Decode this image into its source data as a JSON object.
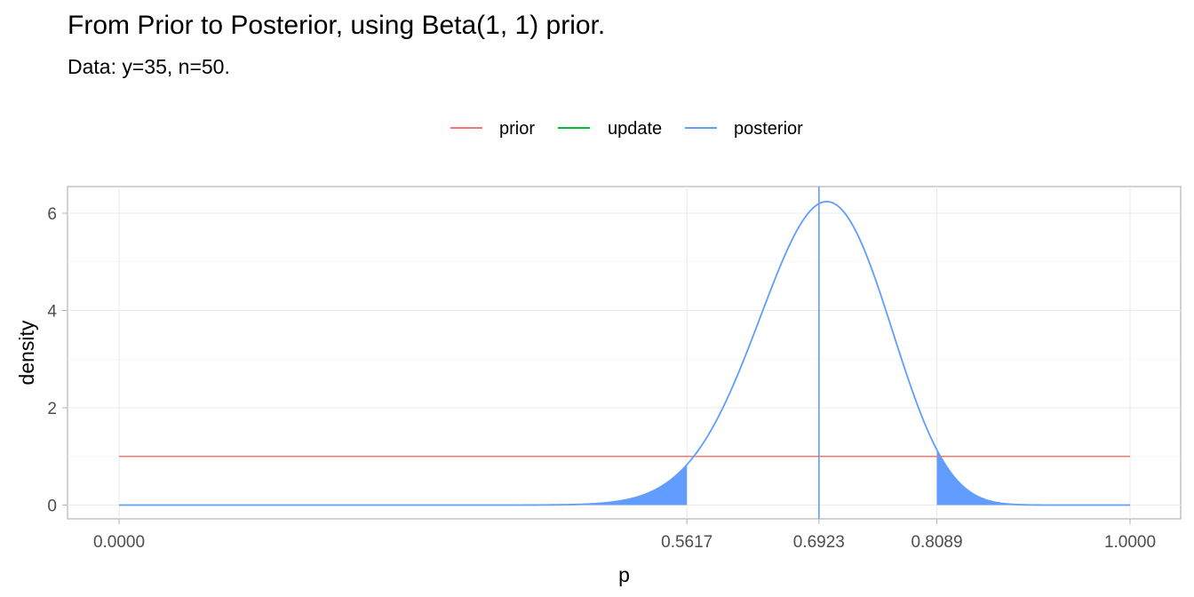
{
  "chart_data": {
    "type": "line",
    "title": "From Prior to Posterior, using Beta(1, 1) prior.",
    "subtitle": "Data: y=35, n=50.",
    "xlabel": "p",
    "ylabel": "density",
    "xlim": [
      0,
      1
    ],
    "ylim": [
      0,
      6.5
    ],
    "x_ticks": [
      "0.0000",
      "0.5617",
      "0.6923",
      "0.8089",
      "1.0000"
    ],
    "x_tick_values": [
      0,
      0.5617,
      0.6923,
      0.8089,
      1
    ],
    "y_ticks": [
      "0",
      "2",
      "4",
      "6"
    ],
    "y_tick_values": [
      0,
      2,
      4,
      6
    ],
    "grid": true,
    "legend_position": "top",
    "series": [
      {
        "name": "prior",
        "color": "#F8766D",
        "distribution": {
          "family": "beta",
          "alpha": 1,
          "beta": 1
        }
      },
      {
        "name": "update",
        "color": "#00BA38",
        "distribution": null
      },
      {
        "name": "posterior",
        "color": "#619CFF",
        "distribution": {
          "family": "beta",
          "alpha": 36,
          "beta": 16
        }
      }
    ],
    "posterior_mean": 0.6923,
    "credible_interval": [
      0.5617,
      0.8089
    ],
    "shaded_tails_color": "#619CFF"
  }
}
